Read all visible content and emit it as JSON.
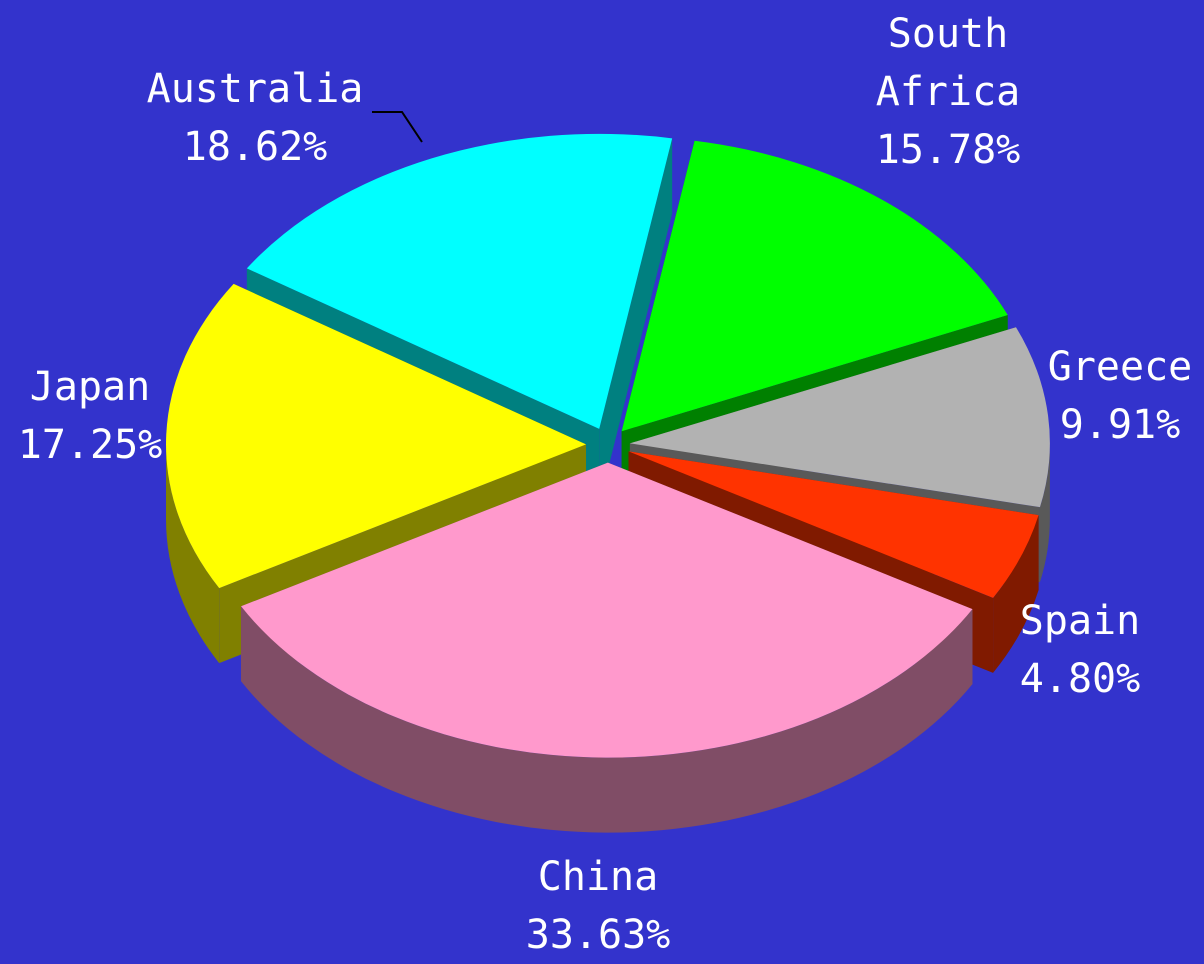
{
  "chart_data": {
    "type": "pie3d",
    "categories": [
      "South Africa",
      "Greece",
      "Spain",
      "China",
      "Japan",
      "Australia"
    ],
    "values": [
      15.78,
      9.91,
      4.8,
      33.63,
      17.25,
      18.62
    ],
    "value_labels": [
      "15.78%",
      "9.91%",
      "4.80%",
      "33.63%",
      "17.25%",
      "18.62%"
    ],
    "colors": [
      "#00ff00",
      "#b2b2b2",
      "#ff3300",
      "#ff99cc",
      "#ffff00",
      "#00ffff"
    ]
  }
}
